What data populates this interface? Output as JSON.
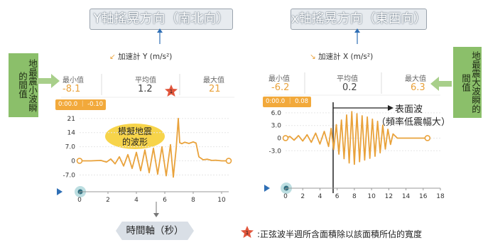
{
  "left_panel": {
    "header_title": "Y軸搖晃方向（南北向）",
    "legend_label": "加速計 Y (m/s²)",
    "side_label": "地最震小波瞬的間值",
    "stats": {
      "min_label": "最小值",
      "min_value": "-8.1",
      "avg_label": "平均值",
      "avg_value": "1.2",
      "max_label": "最大值",
      "max_value": "21"
    },
    "tooltip": "0:00.0 ｜ -0.10",
    "bubble_line1": "模擬地震",
    "bubble_line2": "的波形",
    "star_number": "1",
    "bottom_label": "時間軸（秒）"
  },
  "right_panel": {
    "header_title": "x軸搖晃方向（東西向）",
    "legend_label": "加速計 X (m/s²)",
    "side_label": "地最震大波瞬的間值",
    "stats": {
      "min_label": "最小值",
      "min_value": "-6.2",
      "avg_label": "平均值",
      "avg_value": "0.2",
      "max_label": "最大值",
      "max_value": "6.3"
    },
    "tooltip": "0:00.0 ｜ 0.08",
    "surface_wave_label": "表面波",
    "surface_wave_sub": "（頻率低震幅大）"
  },
  "footnote": {
    "star_number": "1",
    "text": ":正弦波半週所含面積除以該面積所佔的寬度"
  },
  "colors": {
    "wave": "#e9a23b",
    "accent": "#e1553b",
    "arrow": "#2f6fb5",
    "label_green": "#8bbf6a"
  },
  "chart_data": [
    {
      "type": "line",
      "title": "",
      "series_label": "加速計 Y (m/s²)",
      "x_ticks": [
        0,
        2,
        4,
        6,
        8,
        10
      ],
      "y_ticks": [
        21,
        14,
        7.0,
        0,
        -7.0
      ],
      "xlim": [
        0,
        10.5
      ],
      "ylim": [
        -9,
        22
      ],
      "x": [
        0,
        0.8,
        1.5,
        1.9,
        2.2,
        2.5,
        2.8,
        3.1,
        3.4,
        3.7,
        4.0,
        4.3,
        4.6,
        4.9,
        5.2,
        5.5,
        5.8,
        6.1,
        6.4,
        6.6,
        6.8,
        6.95,
        7.05,
        7.2,
        7.4,
        7.7,
        8.0,
        8.2,
        8.4,
        8.7,
        9.0,
        9.3,
        9.6,
        10.0,
        10.5
      ],
      "y": [
        0,
        0,
        0.2,
        -0.6,
        0.9,
        -1.5,
        2.0,
        -2.6,
        3.1,
        -3.8,
        4.2,
        -4.9,
        5.4,
        -5.9,
        6.3,
        -6.6,
        7.0,
        -7.4,
        8.0,
        -8.1,
        6.0,
        21,
        9.0,
        8.5,
        9.2,
        8.6,
        9.4,
        8.8,
        2.0,
        0.5,
        0.8,
        0.2,
        0.3,
        0,
        0
      ]
    },
    {
      "type": "line",
      "title": "",
      "series_label": "加速計 X (m/s²)",
      "x_ticks": [
        0,
        2,
        4,
        6,
        8,
        10,
        12,
        14,
        16,
        18
      ],
      "y_ticks": [
        6.0,
        3.0,
        0,
        -3.0
      ],
      "xlim": [
        0,
        18
      ],
      "ylim": [
        -7,
        7.5
      ],
      "x": [
        0,
        0.5,
        1.0,
        1.5,
        2.0,
        2.5,
        3.0,
        3.5,
        4.0,
        4.5,
        5.0,
        5.3,
        5.6,
        5.9,
        6.2,
        6.5,
        6.8,
        7.1,
        7.4,
        7.7,
        8.0,
        8.3,
        8.6,
        8.9,
        9.2,
        9.5,
        9.8,
        10.1,
        10.4,
        10.7,
        11.0,
        11.3,
        11.6,
        11.9,
        12.2,
        12.5,
        13.0,
        14.0,
        15.0,
        16.0,
        16.5
      ],
      "y": [
        0,
        0.4,
        -0.5,
        0.6,
        -0.7,
        0.8,
        -1.0,
        1.2,
        -1.4,
        1.6,
        -2.0,
        2.3,
        -2.7,
        3.2,
        -3.8,
        4.3,
        -4.9,
        5.5,
        -5.9,
        6.3,
        -6.2,
        5.8,
        -5.6,
        5.3,
        -5.2,
        5.0,
        -4.8,
        4.5,
        -4.3,
        4.0,
        -3.5,
        3.1,
        -2.6,
        2.1,
        -1.5,
        1.0,
        0,
        0,
        0,
        0,
        0
      ]
    }
  ]
}
